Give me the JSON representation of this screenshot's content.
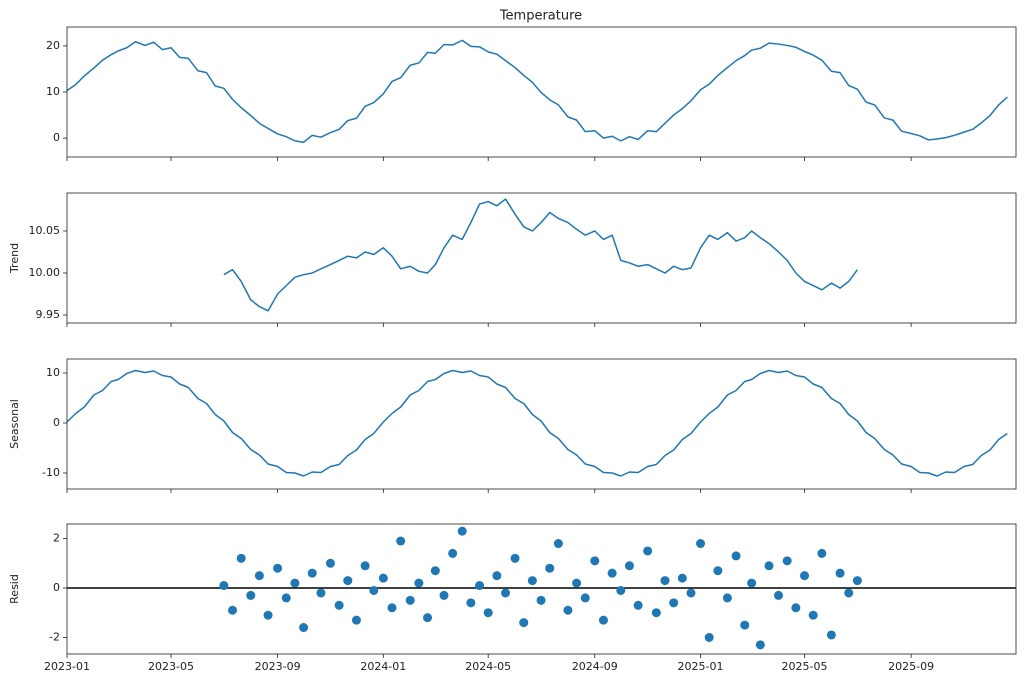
{
  "chart_data": [
    {
      "type": "line",
      "title": "Temperature",
      "color": "#1f77b4",
      "x": [
        "2023-01-01",
        "2023-01-11",
        "2023-01-21",
        "2023-02-01",
        "2023-02-11",
        "2023-02-21",
        "2023-03-01",
        "2023-03-11",
        "2023-03-21",
        "2023-04-01",
        "2023-04-11",
        "2023-04-21",
        "2023-05-01",
        "2023-05-11",
        "2023-05-21",
        "2023-06-01",
        "2023-06-11",
        "2023-06-21",
        "2023-07-01",
        "2023-07-11",
        "2023-07-21",
        "2023-08-01",
        "2023-08-11",
        "2023-08-21",
        "2023-09-01",
        "2023-09-11",
        "2023-09-21",
        "2023-10-01",
        "2023-10-11",
        "2023-10-21",
        "2023-11-01",
        "2023-11-11",
        "2023-11-21",
        "2023-12-01",
        "2023-12-11",
        "2023-12-21",
        "2024-01-01",
        "2024-01-11",
        "2024-01-21",
        "2024-02-01",
        "2024-02-11",
        "2024-02-21",
        "2024-03-01",
        "2024-03-11",
        "2024-03-21",
        "2024-04-01",
        "2024-04-11",
        "2024-04-21",
        "2024-05-01",
        "2024-05-11",
        "2024-05-21",
        "2024-06-01",
        "2024-06-11",
        "2024-06-21",
        "2024-07-01",
        "2024-07-11",
        "2024-07-21",
        "2024-08-01",
        "2024-08-11",
        "2024-08-21",
        "2024-09-01",
        "2024-09-11",
        "2024-09-21",
        "2024-10-01",
        "2024-10-11",
        "2024-10-21",
        "2024-11-01",
        "2024-11-11",
        "2024-11-21",
        "2024-12-01",
        "2024-12-11",
        "2024-12-21",
        "2025-01-01",
        "2025-01-11",
        "2025-01-21",
        "2025-02-01",
        "2025-02-11",
        "2025-02-21",
        "2025-03-01",
        "2025-03-11",
        "2025-03-21",
        "2025-04-01",
        "2025-04-11",
        "2025-04-21",
        "2025-05-01",
        "2025-05-11",
        "2025-05-21",
        "2025-06-01",
        "2025-06-11",
        "2025-06-21",
        "2025-07-01",
        "2025-07-11",
        "2025-07-21",
        "2025-08-01",
        "2025-08-11",
        "2025-08-21",
        "2025-09-01",
        "2025-09-11",
        "2025-09-21",
        "2025-10-01",
        "2025-10-11",
        "2025-10-21",
        "2025-11-01",
        "2025-11-11",
        "2025-11-21",
        "2025-12-01",
        "2025-12-11",
        "2025-12-21"
      ],
      "values": [
        10.3,
        11.6,
        13.5,
        15.2,
        16.9,
        18.1,
        18.9,
        19.6,
        20.9,
        20.1,
        20.8,
        19.2,
        19.6,
        17.5,
        17.3,
        14.6,
        14.2,
        11.3,
        10.8,
        8.4,
        6.6,
        4.9,
        3.2,
        2.1,
        0.9,
        0.3,
        -0.6,
        -0.9,
        0.6,
        0.2,
        1.2,
        1.9,
        3.8,
        4.3,
        6.9,
        7.7,
        9.6,
        12.3,
        13.1,
        15.8,
        16.3,
        18.6,
        18.4,
        20.3,
        20.2,
        21.2,
        19.9,
        19.8,
        18.7,
        18.2,
        16.8,
        15.3,
        13.6,
        12.1,
        9.9,
        8.3,
        7.2,
        4.6,
        3.9,
        1.4,
        1.6,
        0.0,
        0.4,
        -0.6,
        0.3,
        -0.3,
        1.6,
        1.4,
        3.2,
        5.0,
        6.4,
        8.1,
        10.5,
        11.7,
        13.6,
        15.3,
        16.8,
        17.9,
        19.1,
        19.5,
        20.6,
        20.4,
        20.1,
        19.7,
        18.8,
        18.0,
        16.9,
        14.5,
        14.2,
        11.4,
        10.6,
        7.8,
        7.2,
        4.4,
        3.9,
        1.5,
        1.0,
        0.5,
        -0.4,
        -0.2,
        0.1,
        0.6,
        1.3,
        1.9,
        3.3,
        4.9,
        7.2,
        8.9
      ],
      "xlim": [
        "2023-01-01",
        "2025-12-31"
      ],
      "xticks": [
        "2023-01",
        "2023-05",
        "2023-09",
        "2024-01",
        "2024-05",
        "2024-09",
        "2025-01",
        "2025-05",
        "2025-09"
      ],
      "ylim": [
        -4.1,
        24.1
      ],
      "yticks": [
        0,
        10,
        20
      ]
    },
    {
      "type": "line",
      "ylabel": "Trend",
      "color": "#1f77b4",
      "x": [
        "2023-07-01",
        "2023-07-11",
        "2023-07-21",
        "2023-08-01",
        "2023-08-11",
        "2023-08-21",
        "2023-09-01",
        "2023-09-11",
        "2023-09-21",
        "2023-10-01",
        "2023-10-11",
        "2023-10-21",
        "2023-11-01",
        "2023-11-11",
        "2023-11-21",
        "2023-12-01",
        "2023-12-11",
        "2023-12-21",
        "2024-01-01",
        "2024-01-11",
        "2024-01-21",
        "2024-02-01",
        "2024-02-11",
        "2024-02-21",
        "2024-03-01",
        "2024-03-11",
        "2024-03-21",
        "2024-04-01",
        "2024-04-11",
        "2024-04-21",
        "2024-05-01",
        "2024-05-11",
        "2024-05-21",
        "2024-06-01",
        "2024-06-11",
        "2024-06-21",
        "2024-07-01",
        "2024-07-11",
        "2024-07-21",
        "2024-08-01",
        "2024-08-11",
        "2024-08-21",
        "2024-09-01",
        "2024-09-11",
        "2024-09-21",
        "2024-10-01",
        "2024-10-11",
        "2024-10-21",
        "2024-11-01",
        "2024-11-11",
        "2024-11-21",
        "2024-12-01",
        "2024-12-11",
        "2024-12-21",
        "2025-01-01",
        "2025-01-11",
        "2025-01-21",
        "2025-02-01",
        "2025-02-11",
        "2025-02-21",
        "2025-03-01",
        "2025-03-11",
        "2025-03-21",
        "2025-04-01",
        "2025-04-11",
        "2025-04-21",
        "2025-05-01",
        "2025-05-11",
        "2025-05-21",
        "2025-06-01",
        "2025-06-11",
        "2025-06-21",
        "2025-07-01"
      ],
      "values": [
        9.998,
        10.004,
        9.99,
        9.968,
        9.96,
        9.955,
        9.975,
        9.985,
        9.995,
        9.998,
        10.0,
        10.005,
        10.01,
        10.015,
        10.02,
        10.018,
        10.025,
        10.022,
        10.03,
        10.02,
        10.005,
        10.008,
        10.002,
        10.0,
        10.01,
        10.03,
        10.045,
        10.04,
        10.06,
        10.082,
        10.085,
        10.08,
        10.088,
        10.07,
        10.055,
        10.05,
        10.06,
        10.072,
        10.065,
        10.06,
        10.052,
        10.045,
        10.05,
        10.04,
        10.045,
        10.015,
        10.012,
        10.008,
        10.01,
        10.005,
        10.0,
        10.008,
        10.004,
        10.006,
        10.03,
        10.045,
        10.04,
        10.048,
        10.038,
        10.042,
        10.05,
        10.042,
        10.035,
        10.025,
        10.015,
        10.0,
        9.99,
        9.985,
        9.98,
        9.988,
        9.982,
        9.99,
        10.004
      ],
      "xlim": [
        "2023-01-01",
        "2025-12-31"
      ],
      "xticks": [
        "2023-01",
        "2023-05",
        "2023-09",
        "2024-01",
        "2024-05",
        "2024-09",
        "2025-01",
        "2025-05",
        "2025-09"
      ],
      "ylim": [
        9.9405,
        10.0952
      ],
      "yticks": [
        9.95,
        {
          "value": 10,
          "label": "10.00"
        },
        10.05
      ]
    },
    {
      "type": "line",
      "ylabel": "Seasonal",
      "color": "#1f77b4",
      "x": [
        "2023-01-01",
        "2023-01-11",
        "2023-01-21",
        "2023-02-01",
        "2023-02-11",
        "2023-02-21",
        "2023-03-01",
        "2023-03-11",
        "2023-03-21",
        "2023-04-01",
        "2023-04-11",
        "2023-04-21",
        "2023-05-01",
        "2023-05-11",
        "2023-05-21",
        "2023-06-01",
        "2023-06-11",
        "2023-06-21",
        "2023-07-01",
        "2023-07-11",
        "2023-07-21",
        "2023-08-01",
        "2023-08-11",
        "2023-08-21",
        "2023-09-01",
        "2023-09-11",
        "2023-09-21",
        "2023-10-01",
        "2023-10-11",
        "2023-10-21",
        "2023-11-01",
        "2023-11-11",
        "2023-11-21",
        "2023-12-01",
        "2023-12-11",
        "2023-12-21",
        "2024-01-01",
        "2024-01-11",
        "2024-01-21",
        "2024-02-01",
        "2024-02-11",
        "2024-02-21",
        "2024-03-01",
        "2024-03-11",
        "2024-03-21",
        "2024-04-01",
        "2024-04-11",
        "2024-04-21",
        "2024-05-01",
        "2024-05-11",
        "2024-05-21",
        "2024-06-01",
        "2024-06-11",
        "2024-06-21",
        "2024-07-01",
        "2024-07-11",
        "2024-07-21",
        "2024-08-01",
        "2024-08-11",
        "2024-08-21",
        "2024-09-01",
        "2024-09-11",
        "2024-09-21",
        "2024-10-01",
        "2024-10-11",
        "2024-10-21",
        "2024-11-01",
        "2024-11-11",
        "2024-11-21",
        "2024-12-01",
        "2024-12-11",
        "2024-12-21",
        "2025-01-01",
        "2025-01-11",
        "2025-01-21",
        "2025-02-01",
        "2025-02-11",
        "2025-02-21",
        "2025-03-01",
        "2025-03-11",
        "2025-03-21",
        "2025-04-01",
        "2025-04-11",
        "2025-04-21",
        "2025-05-01",
        "2025-05-11",
        "2025-05-21",
        "2025-06-01",
        "2025-06-11",
        "2025-06-21",
        "2025-07-01",
        "2025-07-11",
        "2025-07-21",
        "2025-08-01",
        "2025-08-11",
        "2025-08-21",
        "2025-09-01",
        "2025-09-11",
        "2025-09-21",
        "2025-10-01",
        "2025-10-11",
        "2025-10-21",
        "2025-11-01",
        "2025-11-11",
        "2025-11-21",
        "2025-12-01",
        "2025-12-11",
        "2025-12-21"
      ],
      "values": [
        0.2,
        1.9,
        3.2,
        5.6,
        6.5,
        8.3,
        8.7,
        9.9,
        10.5,
        10.1,
        10.4,
        9.5,
        9.2,
        7.8,
        7.1,
        4.9,
        3.9,
        1.7,
        0.4,
        -1.9,
        -3.1,
        -5.3,
        -6.4,
        -8.2,
        -8.7,
        -9.9,
        -10.0,
        -10.6,
        -9.8,
        -9.9,
        -8.7,
        -8.3,
        -6.5,
        -5.4,
        -3.3,
        -2.1,
        0.2,
        1.9,
        3.2,
        5.6,
        6.5,
        8.3,
        8.7,
        9.9,
        10.5,
        10.1,
        10.4,
        9.5,
        9.2,
        7.8,
        7.1,
        4.9,
        3.9,
        1.7,
        0.4,
        -1.9,
        -3.1,
        -5.3,
        -6.4,
        -8.2,
        -8.7,
        -9.9,
        -10.0,
        -10.6,
        -9.8,
        -9.9,
        -8.7,
        -8.3,
        -6.5,
        -5.4,
        -3.3,
        -2.1,
        0.2,
        1.9,
        3.2,
        5.6,
        6.5,
        8.3,
        8.7,
        9.9,
        10.5,
        10.1,
        10.4,
        9.5,
        9.2,
        7.8,
        7.1,
        4.9,
        3.9,
        1.7,
        0.4,
        -1.9,
        -3.1,
        -5.3,
        -6.4,
        -8.2,
        -8.7,
        -9.9,
        -10.0,
        -10.6,
        -9.8,
        -9.9,
        -8.7,
        -8.3,
        -6.5,
        -5.4,
        -3.3,
        -2.1
      ],
      "xlim": [
        "2023-01-01",
        "2025-12-31"
      ],
      "xticks": [
        "2023-01",
        "2023-05",
        "2023-09",
        "2024-01",
        "2024-05",
        "2024-09",
        "2025-01",
        "2025-05",
        "2025-09"
      ],
      "ylim": [
        -13.2,
        12.8
      ],
      "yticks": [
        -10,
        0,
        10
      ]
    },
    {
      "type": "scatter",
      "ylabel": "Resid",
      "color": "#1f77b4",
      "baseline": 0,
      "baseline_color": "#000000",
      "x": [
        "2023-07-01",
        "2023-07-11",
        "2023-07-21",
        "2023-08-01",
        "2023-08-11",
        "2023-08-21",
        "2023-09-01",
        "2023-09-11",
        "2023-09-21",
        "2023-10-01",
        "2023-10-11",
        "2023-10-21",
        "2023-11-01",
        "2023-11-11",
        "2023-11-21",
        "2023-12-01",
        "2023-12-11",
        "2023-12-21",
        "2024-01-01",
        "2024-01-11",
        "2024-01-21",
        "2024-02-01",
        "2024-02-11",
        "2024-02-21",
        "2024-03-01",
        "2024-03-11",
        "2024-03-21",
        "2024-04-01",
        "2024-04-11",
        "2024-04-21",
        "2024-05-01",
        "2024-05-11",
        "2024-05-21",
        "2024-06-01",
        "2024-06-11",
        "2024-06-21",
        "2024-07-01",
        "2024-07-11",
        "2024-07-21",
        "2024-08-01",
        "2024-08-11",
        "2024-08-21",
        "2024-09-01",
        "2024-09-11",
        "2024-09-21",
        "2024-10-01",
        "2024-10-11",
        "2024-10-21",
        "2024-11-01",
        "2024-11-11",
        "2024-11-21",
        "2024-12-01",
        "2024-12-11",
        "2024-12-21",
        "2025-01-01",
        "2025-01-11",
        "2025-01-21",
        "2025-02-01",
        "2025-02-11",
        "2025-02-21",
        "2025-03-01",
        "2025-03-11",
        "2025-03-21",
        "2025-04-01",
        "2025-04-11",
        "2025-04-21",
        "2025-05-01",
        "2025-05-11",
        "2025-05-21",
        "2025-06-01",
        "2025-06-11",
        "2025-06-21",
        "2025-07-01"
      ],
      "values": [
        0.1,
        -0.9,
        1.2,
        -0.3,
        0.5,
        -1.1,
        0.8,
        -0.4,
        0.2,
        -1.6,
        0.6,
        -0.2,
        1.0,
        -0.7,
        0.3,
        -1.3,
        0.9,
        -0.1,
        0.4,
        -0.8,
        1.9,
        -0.5,
        0.2,
        -1.2,
        0.7,
        -0.3,
        1.4,
        2.3,
        -0.6,
        0.1,
        -1.0,
        0.5,
        -0.2,
        1.2,
        -1.4,
        0.3,
        -0.5,
        0.8,
        1.8,
        -0.9,
        0.2,
        -0.4,
        1.1,
        -1.3,
        0.6,
        -0.1,
        0.9,
        -0.7,
        1.5,
        -1.0,
        0.3,
        -0.6,
        0.4,
        -0.2,
        1.8,
        -2.0,
        0.7,
        -0.4,
        1.3,
        -1.5,
        0.2,
        -2.3,
        0.9,
        -0.3,
        1.1,
        -0.8,
        0.5,
        -1.1,
        1.4,
        -1.9,
        0.6,
        -0.2,
        0.3
      ],
      "xlim": [
        "2023-01-01",
        "2025-12-31"
      ],
      "xticks": [
        "2023-01",
        "2023-05",
        "2023-09",
        "2024-01",
        "2024-05",
        "2024-09",
        "2025-01",
        "2025-05",
        "2025-09"
      ],
      "ylim": [
        -2.67,
        2.59
      ],
      "yticks": [
        -2,
        0,
        2
      ]
    }
  ]
}
